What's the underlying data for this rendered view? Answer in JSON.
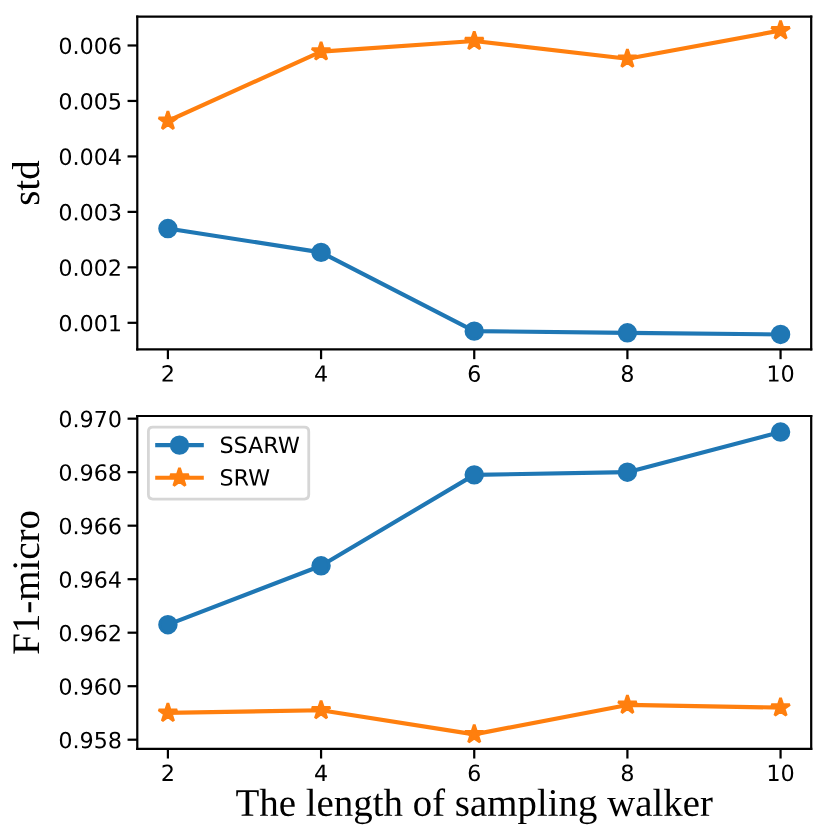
{
  "chart_data": [
    {
      "type": "line",
      "ylabel": "std",
      "x": [
        2,
        4,
        6,
        8,
        10
      ],
      "xlim": [
        1.6,
        10.4
      ],
      "xticks": [
        2,
        4,
        6,
        8,
        10
      ],
      "ylim": [
        0.00052,
        0.00652
      ],
      "yticks": [
        0.001,
        0.002,
        0.003,
        0.004,
        0.005,
        0.006
      ],
      "grid": false,
      "legend": false,
      "series": [
        {
          "color": "#1f77b4",
          "marker": "circle",
          "values": [
            0.0027,
            0.00227,
            0.00085,
            0.00082,
            0.00079
          ]
        },
        {
          "color": "#ff7f0e",
          "marker": "star",
          "values": [
            0.00464,
            0.00589,
            0.00608,
            0.00576,
            0.00627
          ]
        }
      ]
    },
    {
      "type": "line",
      "ylabel": "F1-micro",
      "xlabel": "The length of sampling walker",
      "x": [
        2,
        4,
        6,
        8,
        10
      ],
      "xlim": [
        1.6,
        10.4
      ],
      "xticks": [
        2,
        4,
        6,
        8,
        10
      ],
      "ylim": [
        0.95766,
        0.9701
      ],
      "yticks": [
        0.958,
        {
          "value": 0.96,
          "label": "0.960"
        },
        0.962,
        0.964,
        0.966,
        0.968,
        {
          "value": 0.97,
          "label": "0.970"
        }
      ],
      "grid": false,
      "legend": "top left",
      "series": [
        {
          "name": "SSARW",
          "color": "#1f77b4",
          "marker": "circle",
          "values": [
            0.9623,
            0.9645,
            0.9679,
            0.968,
            0.9695
          ]
        },
        {
          "name": "SRW",
          "color": "#ff7f0e",
          "marker": "star",
          "values": [
            0.959,
            0.9591,
            0.9582,
            0.9593,
            0.9592
          ]
        }
      ]
    }
  ]
}
